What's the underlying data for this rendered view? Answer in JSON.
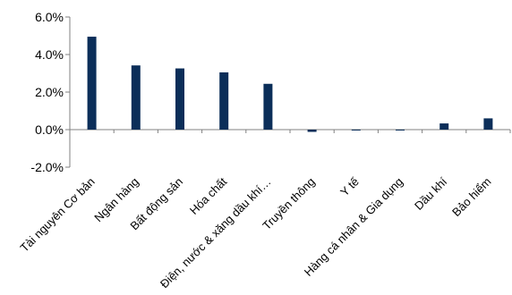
{
  "chart_data": {
    "type": "bar",
    "title": "",
    "xlabel": "",
    "ylabel": "",
    "categories": [
      "Tài nguyên Cơ bản",
      "Ngân hàng",
      "Bất động sản",
      "Hóa chất",
      "Điện, nước & xăng dầu khí…",
      "Truyền thông",
      "Y tế",
      "Hàng cá nhân & Gia dụng",
      "Dầu khí",
      "Bảo hiểm"
    ],
    "values": [
      4.95,
      3.42,
      3.26,
      3.05,
      2.44,
      -0.12,
      -0.04,
      -0.02,
      0.33,
      0.6
    ],
    "ylim": [
      -2.0,
      6.0
    ],
    "yticks": [
      6.0,
      4.0,
      2.0,
      0.0,
      -2.0
    ],
    "ytick_labels": [
      "6.0%",
      "4.0%",
      "2.0%",
      "0.0%",
      "-2.0%"
    ],
    "grid": false,
    "legend": "none",
    "bar_color": "#0b2e59",
    "axis_color": "#808080"
  }
}
